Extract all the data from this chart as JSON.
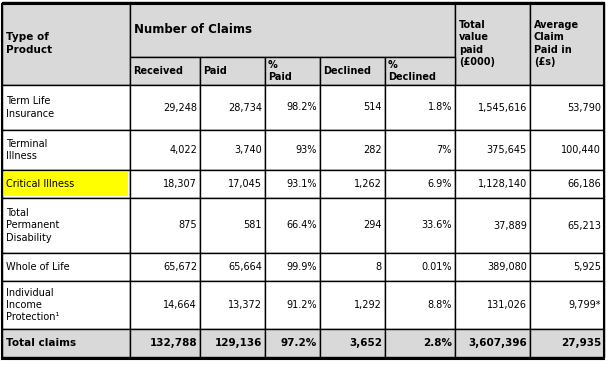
{
  "col_headers_row1": [
    "",
    "Number of Claims",
    "",
    "",
    "",
    "",
    "Total\nvalue\npaid\n(£000)",
    "Average\nClaim\nPaid in\n(£s)"
  ],
  "col_headers_row2": [
    "Type of\nProduct",
    "Received",
    "Paid",
    "%\nPaid",
    "Declined",
    "%\nDeclined",
    "",
    ""
  ],
  "rows": [
    {
      "label": "Term Life\nInsurance",
      "highlight": false,
      "values": [
        "29,248",
        "28,734",
        "98.2%",
        "514",
        "1.8%",
        "1,545,616",
        "53,790"
      ],
      "bold": false
    },
    {
      "label": "Terminal\nIllness",
      "highlight": false,
      "values": [
        "4,022",
        "3,740",
        "93%",
        "282",
        "7%",
        "375,645",
        "100,440"
      ],
      "bold": false
    },
    {
      "label": "Critical Illness",
      "highlight": true,
      "values": [
        "18,307",
        "17,045",
        "93.1%",
        "1,262",
        "6.9%",
        "1,128,140",
        "66,186"
      ],
      "bold": false
    },
    {
      "label": "Total\nPermanent\nDisability",
      "highlight": false,
      "values": [
        "875",
        "581",
        "66.4%",
        "294",
        "33.6%",
        "37,889",
        "65,213"
      ],
      "bold": false
    },
    {
      "label": "Whole of Life",
      "highlight": false,
      "values": [
        "65,672",
        "65,664",
        "99.9%",
        "8",
        "0.01%",
        "389,080",
        "5,925"
      ],
      "bold": false
    },
    {
      "label": "Individual\nIncome\nProtection¹",
      "highlight": false,
      "values": [
        "14,664",
        "13,372",
        "91.2%",
        "1,292",
        "8.8%",
        "131,026",
        "9,799*"
      ],
      "bold": false
    },
    {
      "label": "Total claims",
      "highlight": false,
      "values": [
        "132,788",
        "129,136",
        "97.2%",
        "3,652",
        "2.8%",
        "3,607,396",
        "27,935"
      ],
      "bold": true
    }
  ],
  "bg_color": "#ffffff",
  "header_bg": "#d9d9d9",
  "highlight_color": "#ffff00",
  "border_color": "#000000",
  "text_color": "#000000",
  "subheader_divider_col": 6
}
